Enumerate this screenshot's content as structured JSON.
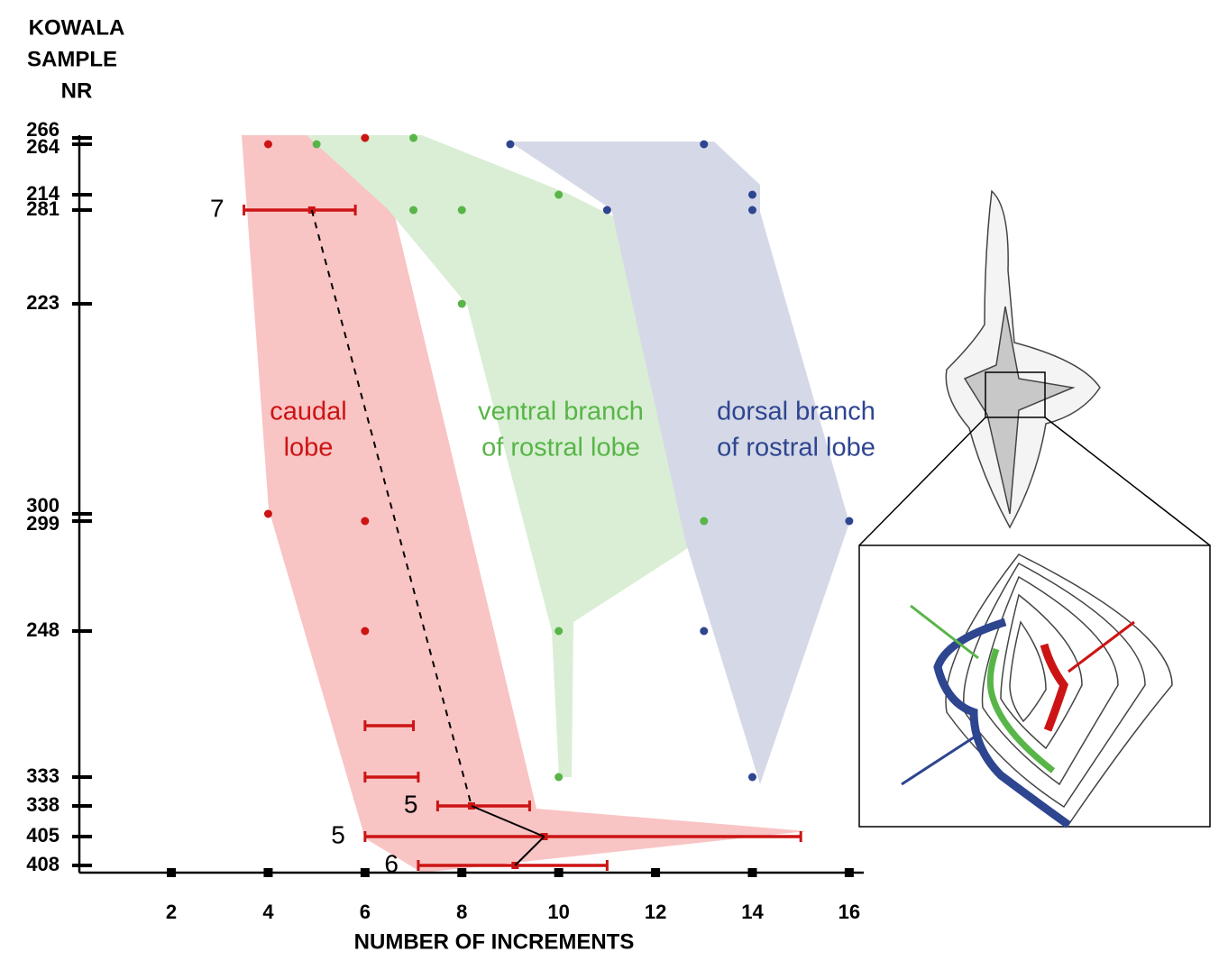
{
  "chart_data": {
    "type": "range-scatter",
    "y_title": [
      "KOWALA",
      "SAMPLE",
      "NR"
    ],
    "x_title": "NUMBER OF INCREMENTS",
    "categories": [
      "266",
      "264",
      "214",
      "281",
      "223",
      "300",
      "299",
      "248",
      null,
      "333",
      "338",
      "405",
      "408"
    ],
    "xlim": [
      0.1,
      16.3
    ],
    "xticks": [
      2,
      4,
      6,
      8,
      10,
      12,
      14,
      16
    ],
    "series": [
      {
        "name": [
          "caudal",
          "lobe"
        ],
        "color": "#cc1414",
        "fill": "#f9c4c4",
        "values": [
          [
            6
          ],
          [
            4
          ],
          [],
          [],
          [],
          [
            4
          ],
          [
            6
          ],
          [
            6
          ],
          [],
          [],
          [],
          [],
          []
        ],
        "ranges": [
          null,
          null,
          null,
          {
            "min": 3.5,
            "max": 5.8,
            "mean": 4.9,
            "n": 7
          },
          null,
          null,
          null,
          null,
          {
            "min": 6,
            "max": 7
          },
          {
            "min": 6,
            "max": 7.1
          },
          {
            "min": 7.5,
            "max": 9.4,
            "mean": 8.2,
            "n": 5
          },
          {
            "min": 6,
            "max": 15,
            "mean": 9.7,
            "n": 5
          },
          {
            "min": 7.1,
            "max": 11,
            "mean": 9.1,
            "n": 6
          }
        ]
      },
      {
        "name": [
          "ventral branch",
          "of rostral lobe"
        ],
        "color": "#58b548",
        "fill": "#d9eed4",
        "values": [
          [
            7
          ],
          [
            5
          ],
          [
            10
          ],
          [
            7,
            8
          ],
          [
            8
          ],
          [],
          [
            13
          ],
          [
            10
          ],
          [],
          [
            10
          ],
          [],
          [],
          []
        ]
      },
      {
        "name": [
          "dorsal branch",
          "of rostral lobe"
        ],
        "color": "#2e4590",
        "fill": "#d5d9e7",
        "values": [
          [],
          [
            9,
            13
          ],
          [
            14
          ],
          [
            11,
            14
          ],
          [],
          [],
          [
            16
          ],
          [
            13
          ],
          [],
          [
            14
          ],
          [],
          [],
          []
        ]
      }
    ]
  }
}
